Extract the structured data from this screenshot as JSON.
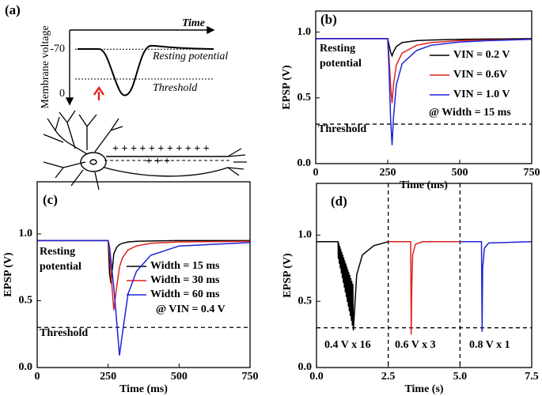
{
  "chart_data": [
    {
      "type": "diagram",
      "panel_label": "(a)",
      "xlabel": "Time",
      "ylabel": "Membrane voltage",
      "ylim": [
        14,
        -100
      ],
      "yticks": [
        -70,
        0
      ],
      "annotations": [
        "Resting potential",
        "Threshold",
        "+ + + + + + + + + + +",
        "+ + +"
      ]
    },
    {
      "type": "line",
      "panel_label": "(b)",
      "xlabel": "Time (ms)",
      "ylabel": "EPSP (V)",
      "xlim": [
        0,
        750
      ],
      "xticks": [
        0,
        250,
        500,
        750
      ],
      "ylim": [
        0,
        1.16
      ],
      "yticks": [
        {
          "value": 0,
          "label": "0.0"
        },
        {
          "value": 0.5,
          "label": "0.5"
        },
        {
          "value": 1,
          "label": "1.0"
        }
      ],
      "threshold": 0.3,
      "x": [
        0,
        250,
        255,
        260,
        265,
        270,
        280,
        300,
        350,
        400,
        500,
        600,
        750
      ],
      "series": [
        {
          "name": "VIN = 0.2 V",
          "color": "#000000",
          "values": [
            0.95,
            0.95,
            0.9,
            0.85,
            0.82,
            0.85,
            0.89,
            0.92,
            0.935,
            0.94,
            0.945,
            0.947,
            0.95
          ]
        },
        {
          "name": "VIN = 0.6V",
          "color": "#e0201c",
          "values": [
            0.95,
            0.95,
            0.8,
            0.6,
            0.46,
            0.6,
            0.75,
            0.84,
            0.9,
            0.92,
            0.935,
            0.94,
            0.945
          ]
        },
        {
          "name": "VIN = 1.0 V",
          "color": "#1c22d8",
          "values": [
            0.95,
            0.95,
            0.7,
            0.35,
            0.14,
            0.35,
            0.6,
            0.76,
            0.86,
            0.9,
            0.925,
            0.935,
            0.945
          ]
        }
      ],
      "annotations": [
        "Resting",
        "potential",
        "@ Width = 15 ms",
        "Threshold"
      ]
    },
    {
      "type": "line",
      "panel_label": "(c)",
      "xlabel": "Time (ms)",
      "ylabel": "EPSP (V)",
      "xlim": [
        0,
        750
      ],
      "xticks": [
        0,
        250,
        500,
        750
      ],
      "ylim": [
        0,
        1.39
      ],
      "yticks": [
        {
          "value": 0,
          "label": "0.0"
        },
        {
          "value": 0.5,
          "label": "0.5"
        },
        {
          "value": 1,
          "label": "1.0"
        }
      ],
      "threshold": 0.3,
      "x": [
        0,
        250,
        255,
        260,
        270,
        280,
        290,
        300,
        320,
        350,
        400,
        500,
        750
      ],
      "series": [
        {
          "name": "Width = 15 ms",
          "color": "#000000",
          "values": [
            0.95,
            0.95,
            0.7,
            0.63,
            0.85,
            0.9,
            0.92,
            0.93,
            0.94,
            0.945,
            0.947,
            0.95,
            0.95
          ]
        },
        {
          "name": "Width = 30 ms",
          "color": "#e0201c",
          "values": [
            0.95,
            0.95,
            0.85,
            0.7,
            0.43,
            0.6,
            0.75,
            0.82,
            0.88,
            0.91,
            0.93,
            0.94,
            0.945
          ]
        },
        {
          "name": "Width = 60 ms",
          "color": "#1c22d8",
          "values": [
            0.95,
            0.95,
            0.9,
            0.8,
            0.6,
            0.35,
            0.09,
            0.25,
            0.55,
            0.72,
            0.84,
            0.91,
            0.935
          ]
        }
      ],
      "annotations": [
        "Resting",
        "potential",
        "@ VIN = 0.4 V",
        "Threshold"
      ]
    },
    {
      "type": "line",
      "panel_label": "(d)",
      "xlabel": "Time (s)",
      "ylabel": "EPSP (V)",
      "xlim": [
        0,
        7.5
      ],
      "xticks": [
        {
          "value": 0,
          "label": "0.0"
        },
        {
          "value": 2.5,
          "label": "2.5"
        },
        {
          "value": 5,
          "label": "5.0"
        },
        {
          "value": 7.5,
          "label": "7.5"
        }
      ],
      "ylim": [
        0,
        1.39
      ],
      "yticks": [
        {
          "value": 0,
          "label": "0.0"
        },
        {
          "value": 0.5,
          "label": "0.5"
        },
        {
          "value": 1,
          "label": "1.0"
        }
      ],
      "threshold": 0.3,
      "vlines": [
        2.5,
        5
      ],
      "series": [
        {
          "color": "#000000",
          "x": [
            0,
            0.75,
            0.76,
            0.775,
            0.795,
            0.81,
            0.83,
            0.845,
            0.865,
            0.88,
            0.9,
            0.915,
            0.935,
            0.95,
            0.97,
            0.985,
            1.005,
            1.02,
            1.04,
            1.055,
            1.075,
            1.09,
            1.11,
            1.125,
            1.145,
            1.16,
            1.18,
            1.195,
            1.215,
            1.23,
            1.25,
            1.265,
            1.285,
            1.4,
            1.6,
            2.0,
            2.5
          ],
          "values": [
            0.95,
            0.95,
            0.82,
            0.94,
            0.784,
            0.918,
            0.748,
            0.896,
            0.712,
            0.874,
            0.676,
            0.852,
            0.64,
            0.83,
            0.604,
            0.808,
            0.568,
            0.786,
            0.532,
            0.764,
            0.496,
            0.742,
            0.46,
            0.72,
            0.424,
            0.698,
            0.388,
            0.676,
            0.352,
            0.654,
            0.316,
            0.632,
            0.28,
            0.7,
            0.85,
            0.92,
            0.95
          ]
        },
        {
          "color": "#e0201c",
          "x": [
            2.5,
            3.28,
            3.3,
            3.32,
            3.35,
            3.45,
            3.7,
            5
          ],
          "values": [
            0.95,
            0.95,
            0.25,
            0.6,
            0.85,
            0.93,
            0.95,
            0.95
          ]
        },
        {
          "color": "#1c22d8",
          "x": [
            5,
            5.75,
            5.77,
            5.79,
            5.85,
            6,
            7.5
          ],
          "values": [
            0.95,
            0.95,
            0.27,
            0.75,
            0.9,
            0.94,
            0.95
          ]
        }
      ],
      "annotations": [
        "0.4 V x 16",
        "0.6 V x 3",
        "0.8 V x 1"
      ]
    }
  ]
}
